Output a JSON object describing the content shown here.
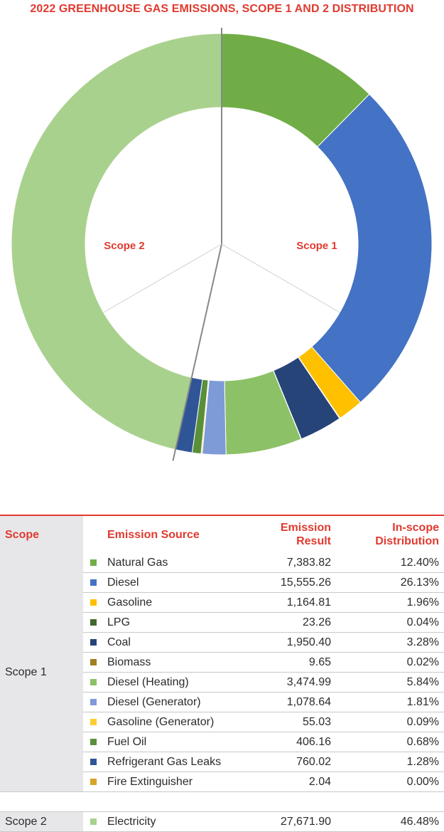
{
  "chart_data": {
    "type": "donut",
    "title": "2022 GREENHOUSE GAS EMISSIONS, SCOPE 1 AND 2 DISTRIBUTION",
    "inner_labels": [
      "Scope 1",
      "Scope 2"
    ],
    "slices": [
      {
        "name": "Natural Gas",
        "value": 12.4,
        "color": "#70ad47"
      },
      {
        "name": "Diesel",
        "value": 26.13,
        "color": "#4472c4"
      },
      {
        "name": "Gasoline",
        "value": 1.96,
        "color": "#ffc000"
      },
      {
        "name": "LPG",
        "value": 0.04,
        "color": "#43682b"
      },
      {
        "name": "Coal",
        "value": 3.28,
        "color": "#264478"
      },
      {
        "name": "Biomass",
        "value": 0.02,
        "color": "#9e7e1f"
      },
      {
        "name": "Diesel (Heating)",
        "value": 5.84,
        "color": "#8cc168"
      },
      {
        "name": "Diesel (Generator)",
        "value": 1.81,
        "color": "#7e9bd8"
      },
      {
        "name": "Gasoline (Generator)",
        "value": 0.09,
        "color": "#ffcd33"
      },
      {
        "name": "Fuel Oil",
        "value": 0.68,
        "color": "#5a8f3a"
      },
      {
        "name": "Refrigerant Gas Leaks",
        "value": 1.28,
        "color": "#2f5597"
      },
      {
        "name": "Fire Extinguisher",
        "value": 0.0,
        "color": "#d4a52a"
      },
      {
        "name": "Electricity",
        "value": 46.48,
        "color": "#a9d18e"
      }
    ]
  },
  "table": {
    "headers": {
      "scope": "Scope",
      "source": "Emission Source",
      "result_line1": "Emission",
      "result_line2": "Result",
      "dist_line1": "In-scope",
      "dist_line2": "Distribution"
    },
    "scope1_label": "Scope 1",
    "scope2_label": "Scope 2",
    "scope1_rows": [
      {
        "source": "Natural Gas",
        "result": "7,383.82",
        "dist": "12.40%",
        "color": "#70ad47"
      },
      {
        "source": "Diesel",
        "result": "15,555.26",
        "dist": "26.13%",
        "color": "#4472c4"
      },
      {
        "source": "Gasoline",
        "result": "1,164.81",
        "dist": "1.96%",
        "color": "#ffc000"
      },
      {
        "source": "LPG",
        "result": "23.26",
        "dist": "0.04%",
        "color": "#43682b"
      },
      {
        "source": "Coal",
        "result": "1,950.40",
        "dist": "3.28%",
        "color": "#264478"
      },
      {
        "source": "Biomass",
        "result": "9.65",
        "dist": "0.02%",
        "color": "#9e7e1f"
      },
      {
        "source": "Diesel (Heating)",
        "result": "3,474.99",
        "dist": "5.84%",
        "color": "#8cc168"
      },
      {
        "source": "Diesel (Generator)",
        "result": "1,078.64",
        "dist": "1.81%",
        "color": "#7e9bd8"
      },
      {
        "source": "Gasoline (Generator)",
        "result": "55.03",
        "dist": "0.09%",
        "color": "#ffcd33"
      },
      {
        "source": "Fuel Oil",
        "result": "406.16",
        "dist": "0.68%",
        "color": "#5a8f3a"
      },
      {
        "source": "Refrigerant Gas Leaks",
        "result": "760.02",
        "dist": "1.28%",
        "color": "#2f5597"
      },
      {
        "source": "Fire Extinguisher",
        "result": "2.04",
        "dist": "0.00%",
        "color": "#d4a52a"
      }
    ],
    "scope2_rows": [
      {
        "source": "Electricity",
        "result": "27,671.90",
        "dist": "46.48%",
        "color": "#a9d18e"
      }
    ]
  }
}
